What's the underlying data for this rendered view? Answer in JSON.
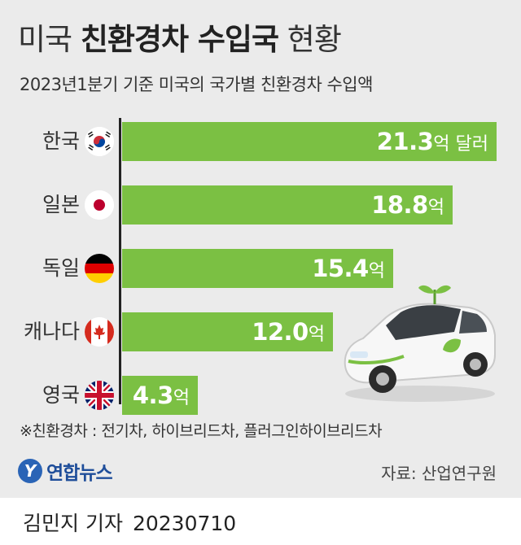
{
  "header": {
    "title_prefix": "미국 ",
    "title_highlight": "친환경차 수입국",
    "title_suffix": " 현황",
    "subtitle": "2023년1분기 기준 미국의 국가별 친환경차 수입액"
  },
  "chart_data": {
    "type": "bar",
    "orientation": "horizontal",
    "categories": [
      "한국",
      "일본",
      "독일",
      "캐나다",
      "영국"
    ],
    "values": [
      21.3,
      18.8,
      15.4,
      12.0,
      4.3
    ],
    "value_labels": [
      "21.3",
      "18.8",
      "15.4",
      "12.0",
      "4.3"
    ],
    "unit_labels": [
      "억 달러",
      "억",
      "억",
      "억",
      "억"
    ],
    "flags": [
      "korea-flag",
      "japan-flag",
      "germany-flag",
      "canada-flag",
      "uk-flag"
    ],
    "bar_color": "#7bc043",
    "xlim": [
      0,
      21.3
    ]
  },
  "footer": {
    "note": "※친환경차 : 전기차, 하이브리드차, 플러그인하이브리드차",
    "logo_mark": "Y",
    "logo_text": "연합뉴스",
    "source": "자료: 산업연구원",
    "reporter": "김민지 기자",
    "date": "20230710"
  }
}
